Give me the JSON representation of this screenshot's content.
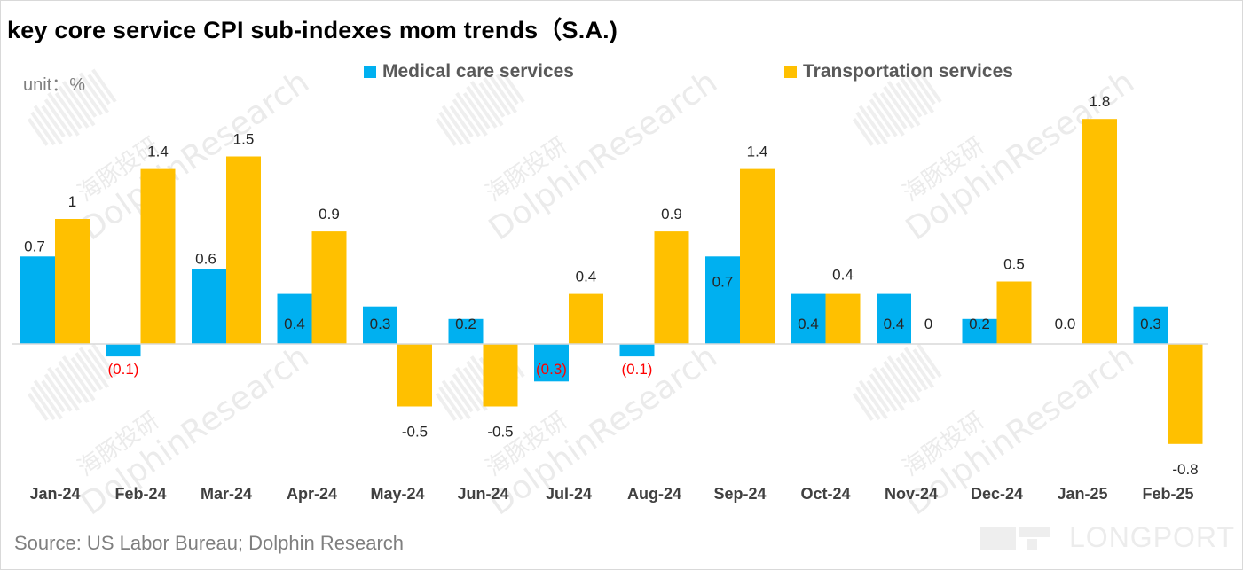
{
  "title": "key core service CPI sub-indexes mom trends（S.A.)",
  "unit_label": "unit：%",
  "source": "Source: US Labor Bureau; Dolphin Research",
  "watermark": {
    "cn": "海豚投研",
    "en": "DolphinResearch",
    "brand": "LONGPORT"
  },
  "colors": {
    "medical": "#00B0F0",
    "transport": "#FFC000",
    "negative_label": "#FF0000",
    "axis": "#d9d9d9"
  },
  "chart_data": {
    "type": "bar",
    "title": "key core service CPI sub-indexes mom trends（S.A.)",
    "ylabel": "unit：%",
    "ylim": [
      -0.9,
      1.9
    ],
    "grid": false,
    "legend_position": "top",
    "categories": [
      "Jan-24",
      "Feb-24",
      "Mar-24",
      "Apr-24",
      "May-24",
      "Jun-24",
      "Jul-24",
      "Aug-24",
      "Sep-24",
      "Oct-24",
      "Nov-24",
      "Dec-24",
      "Jan-25",
      "Feb-25"
    ],
    "series": [
      {
        "name": "Medical care services",
        "color": "#00B0F0",
        "values": [
          0.7,
          -0.1,
          0.6,
          0.4,
          0.3,
          0.2,
          -0.3,
          -0.1,
          0.7,
          0.4,
          0.4,
          0.2,
          0.0,
          0.3
        ],
        "labels": [
          "0.7",
          "(0.1)",
          "0.6",
          "0.4",
          "0.3",
          "0.2",
          "(0.3)",
          "(0.1)",
          "0.7",
          "0.4",
          "0.4",
          "0.2",
          "0.0",
          "0.3"
        ]
      },
      {
        "name": "Transportation services",
        "color": "#FFC000",
        "values": [
          1.0,
          1.4,
          1.5,
          0.9,
          -0.5,
          -0.5,
          0.4,
          0.9,
          1.4,
          0.4,
          0.0,
          0.5,
          1.8,
          -0.8
        ],
        "labels": [
          "1",
          "1.4",
          "1.5",
          "0.9",
          "-0.5",
          "-0.5",
          "0.4",
          "0.9",
          "1.4",
          "0.4",
          "0",
          "0.5",
          "1.8",
          "-0.8"
        ]
      }
    ]
  }
}
